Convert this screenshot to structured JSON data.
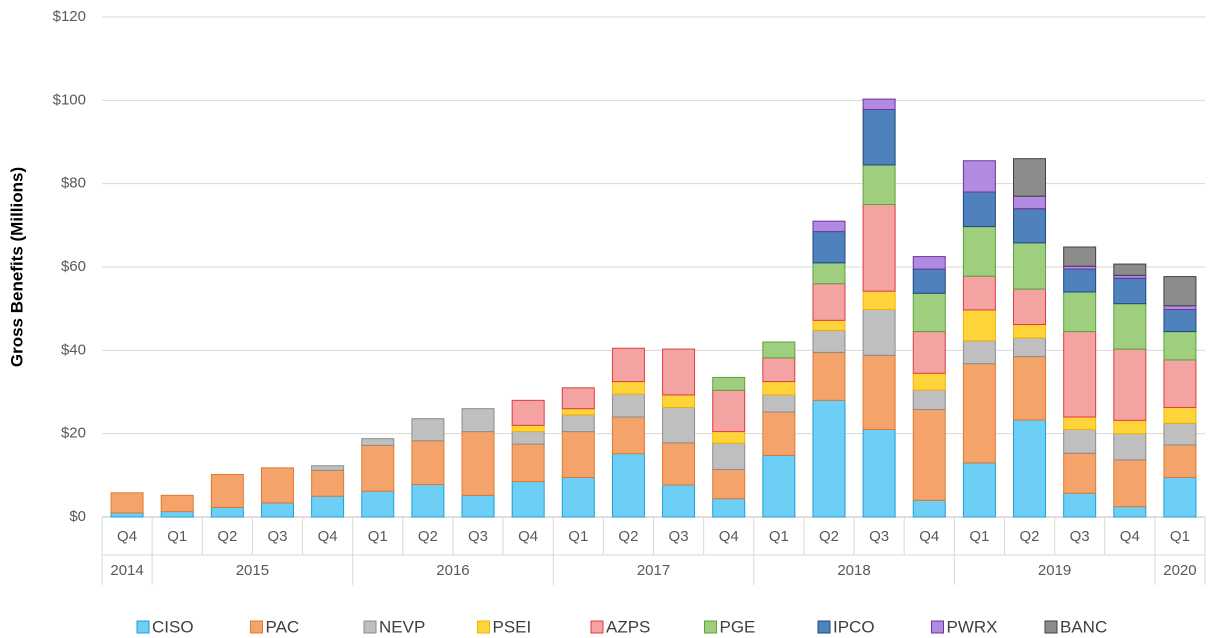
{
  "chart_data": {
    "type": "stacked_bar",
    "y_label": "Gross Benefits (Millions)",
    "category_groups": [
      {
        "label": "2014",
        "categories": [
          "Q4"
        ]
      },
      {
        "label": "2015",
        "categories": [
          "Q1",
          "Q2",
          "Q3",
          "Q4"
        ]
      },
      {
        "label": "2016",
        "categories": [
          "Q1",
          "Q2",
          "Q3",
          "Q4"
        ]
      },
      {
        "label": "2017",
        "categories": [
          "Q1",
          "Q2",
          "Q3",
          "Q4"
        ]
      },
      {
        "label": "2018",
        "categories": [
          "Q1",
          "Q2",
          "Q3",
          "Q4"
        ]
      },
      {
        "label": "2019",
        "categories": [
          "Q1",
          "Q2",
          "Q3",
          "Q4"
        ]
      },
      {
        "label": "2020",
        "categories": [
          "Q1"
        ]
      }
    ],
    "ylim": [
      0,
      120
    ],
    "yticks": [
      {
        "value": 0,
        "label": "$0"
      },
      {
        "value": 20,
        "label": "$20"
      },
      {
        "value": 40,
        "label": "$40"
      },
      {
        "value": 60,
        "label": "$60"
      },
      {
        "value": 80,
        "label": "$80"
      },
      {
        "value": 100,
        "label": "$100"
      },
      {
        "value": 120,
        "label": "$120"
      }
    ],
    "grid": true,
    "legend": "bottom",
    "series": [
      {
        "name": "CISO",
        "color": "#6dcff6",
        "edgecolor": "#1e9fd6",
        "values": [
          1,
          1.3,
          2.3,
          3.4,
          5,
          6.2,
          7.8,
          5.2,
          8.5,
          9.5,
          15.2,
          7.7,
          4.4,
          14.8,
          28,
          21,
          4,
          13,
          23.3,
          5.7,
          2.5,
          9.5
        ]
      },
      {
        "name": "PAC",
        "color": "#f4a46a",
        "edgecolor": "#e07a30",
        "values": [
          4.8,
          3.9,
          7.9,
          8.4,
          6.2,
          11,
          10.5,
          15.3,
          9,
          11,
          8.8,
          10.1,
          7,
          10.4,
          11.5,
          17.8,
          21.8,
          23.8,
          15.2,
          9.6,
          11.2,
          7.8
        ]
      },
      {
        "name": "NEVP",
        "color": "#bfbfbf",
        "edgecolor": "#8c8c8c",
        "values": [
          0,
          0,
          0,
          0,
          1.1,
          1.6,
          5.3,
          5.5,
          3,
          4,
          5.5,
          8.5,
          6.3,
          4.1,
          5.3,
          11,
          4.7,
          5.5,
          4.5,
          5.7,
          6.3,
          5.2
        ]
      },
      {
        "name": "PSEI",
        "color": "#ffd43b",
        "edgecolor": "#f0b400",
        "values": [
          0,
          0,
          0,
          0,
          0,
          0,
          0,
          0,
          1.5,
          1.5,
          3,
          3,
          2.8,
          3.2,
          2.4,
          4.4,
          4,
          7.4,
          3.2,
          3,
          3.2,
          3.8
        ]
      },
      {
        "name": "AZPS",
        "color": "#f4a3a3",
        "edgecolor": "#e03c3c",
        "values": [
          0,
          0,
          0,
          0,
          0,
          0,
          0,
          0,
          6,
          5,
          8,
          11,
          9.9,
          5.7,
          8.8,
          20.8,
          10,
          8.1,
          8.5,
          20.5,
          17.1,
          11.4
        ]
      },
      {
        "name": "PGE",
        "color": "#9fce7f",
        "edgecolor": "#5aa33a",
        "values": [
          0,
          0,
          0,
          0,
          0,
          0,
          0,
          0,
          0,
          0,
          0,
          0,
          3.1,
          3.8,
          5,
          9.5,
          9.2,
          11.9,
          11.1,
          9.5,
          10.9,
          6.8
        ]
      },
      {
        "name": "IPCO",
        "color": "#4f81bd",
        "edgecolor": "#1f497d",
        "values": [
          0,
          0,
          0,
          0,
          0,
          0,
          0,
          0,
          0,
          0,
          0,
          0,
          0,
          0,
          7.5,
          13.3,
          5.8,
          8.3,
          8.2,
          5.5,
          6.1,
          5.3
        ]
      },
      {
        "name": "PWRX",
        "color": "#b18be0",
        "edgecolor": "#7030a0",
        "values": [
          0,
          0,
          0,
          0,
          0,
          0,
          0,
          0,
          0,
          0,
          0,
          0,
          0,
          0,
          2.5,
          2.5,
          3,
          7.5,
          3,
          0.7,
          0.7,
          0.9
        ]
      },
      {
        "name": "BANC",
        "color": "#8c8c8c",
        "edgecolor": "#404040",
        "values": [
          0,
          0,
          0,
          0,
          0,
          0,
          0,
          0,
          0,
          0,
          0,
          0,
          0,
          0,
          0,
          0,
          0,
          0,
          9,
          4.6,
          2.7,
          7
        ]
      }
    ]
  }
}
